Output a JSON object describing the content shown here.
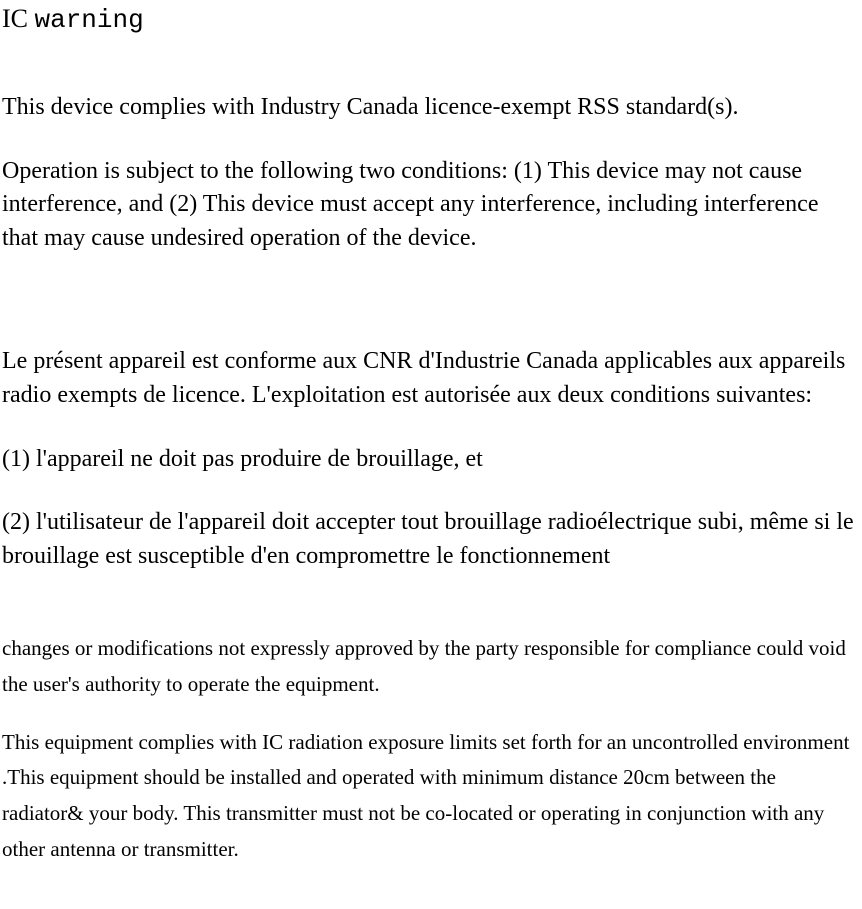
{
  "title": {
    "ic": "IC",
    "warning": "warning"
  },
  "p1": "This device complies with Industry Canada licence-exempt RSS standard(s).",
  "p2": "Operation is subject to the following two conditions: (1) This device may not cause interference, and (2) This device must accept any interference, including interference that may cause undesired operation of the device.",
  "p3": "Le présent appareil est conforme aux CNR d'Industrie Canada applicables aux appareils radio exempts de licence. L'exploitation est autorisée aux deux conditions suivantes:",
  "p4": "(1) l'appareil ne doit pas produire de brouillage, et",
  "p5": "(2) l'utilisateur de l'appareil doit accepter tout brouillage radioélectrique subi, même si le brouillage est susceptible d'en compromettre le fonctionnement",
  "p6": "changes or modifications not expressly approved by the party responsible for compliance could void the user's authority to operate the equipment.",
  "p7": " This equipment complies with IC radiation exposure limits set forth for an uncontrolled environment .This equipment should be installed and operated with minimum distance 20cm between the radiator& your body. This transmitter must not be co-located or operating in conjunction with any other antenna or transmitter."
}
